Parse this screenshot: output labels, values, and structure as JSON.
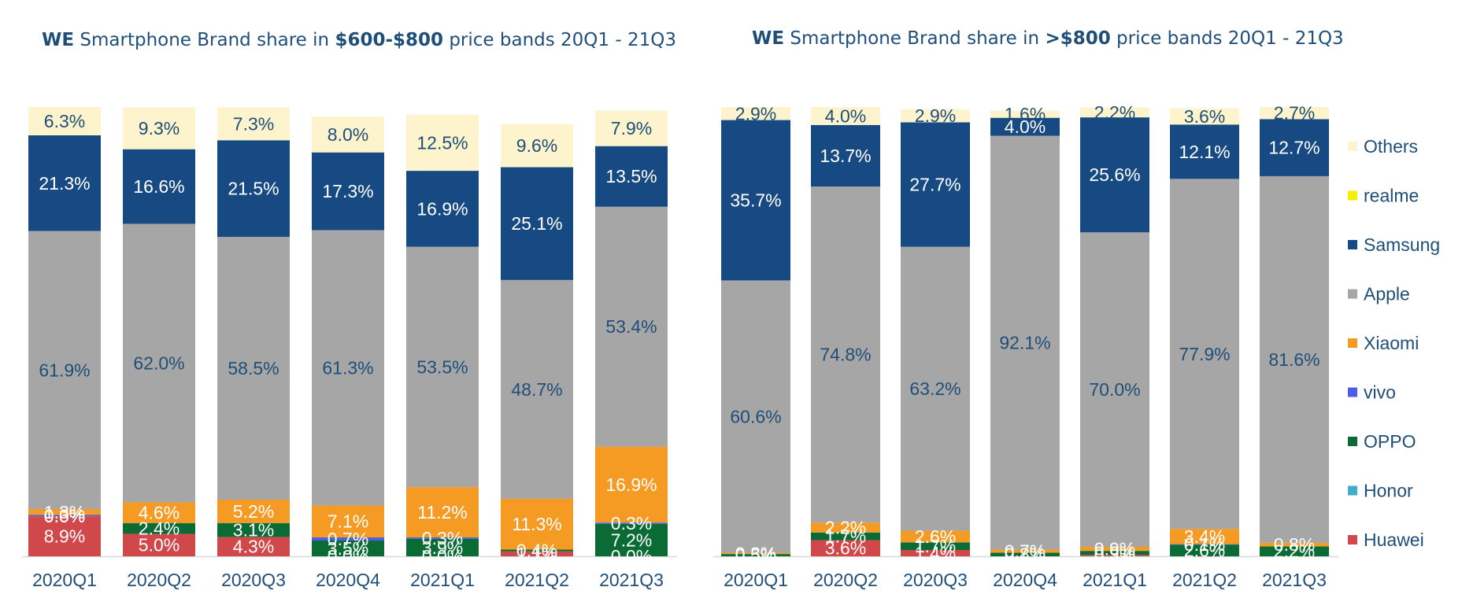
{
  "colors": {
    "Huawei": "#d0484a",
    "Honor": "#3fb0c8",
    "OPPO": "#0a6b34",
    "vivo": "#4a5ee8",
    "Xiaomi": "#f59a23",
    "Apple": "#a6a6a6",
    "Samsung": "#174a82",
    "realme": "#f5f000",
    "Others": "#fdf3cc",
    "text_dark": "#1f4e79",
    "axis": "#d9d9d9"
  },
  "legend": {
    "items": [
      "Others",
      "realme",
      "Samsung",
      "Apple",
      "Xiaomi",
      "vivo",
      "OPPO",
      "Honor",
      "Huawei"
    ]
  },
  "chart_data": [
    {
      "type": "bar",
      "stacked": true,
      "title_parts": [
        {
          "text": "WE",
          "bold": true
        },
        {
          "text": " Smartphone Brand share in ",
          "bold": false
        },
        {
          "text": "$600-$800",
          "bold": true
        },
        {
          "text": " price bands 20Q1 - 21Q3",
          "bold": false
        }
      ],
      "categories": [
        "2020Q1",
        "2020Q2",
        "2020Q3",
        "2020Q4",
        "2021Q1",
        "2021Q2",
        "2021Q3"
      ],
      "ylim": [
        0,
        100
      ],
      "series": [
        {
          "name": "Huawei",
          "values": [
            8.9,
            5.0,
            4.3,
            0.0,
            0.0,
            1.1,
            0.0
          ]
        },
        {
          "name": "Honor",
          "values": [
            0.0,
            0.0,
            0.0,
            0.0,
            0.0,
            0.0,
            0.0
          ]
        },
        {
          "name": "OPPO",
          "values": [
            0.0,
            2.4,
            3.1,
            3.5,
            3.9,
            0.4,
            7.2
          ]
        },
        {
          "name": "vivo",
          "values": [
            0.3,
            0.0,
            0.0,
            0.7,
            0.3,
            0.0,
            0.3
          ]
        },
        {
          "name": "Xiaomi",
          "values": [
            1.3,
            4.6,
            5.2,
            7.1,
            11.2,
            11.3,
            16.9
          ]
        },
        {
          "name": "Apple",
          "values": [
            61.9,
            62.0,
            58.5,
            61.3,
            53.5,
            48.7,
            53.4
          ]
        },
        {
          "name": "Samsung",
          "values": [
            21.3,
            16.6,
            21.5,
            17.3,
            16.9,
            25.1,
            13.5
          ]
        },
        {
          "name": "realme",
          "values": [
            0.0,
            0.0,
            0.0,
            0.0,
            0.0,
            0.0,
            0.0
          ]
        },
        {
          "name": "Others",
          "values": [
            6.3,
            9.3,
            7.3,
            8.0,
            12.5,
            9.6,
            7.9
          ]
        }
      ]
    },
    {
      "type": "bar",
      "stacked": true,
      "title_parts": [
        {
          "text": "WE",
          "bold": true
        },
        {
          "text": " Smartphone Brand share in ",
          "bold": false
        },
        {
          "text": ">$800",
          "bold": true
        },
        {
          "text": " price bands 20Q1 - 21Q3",
          "bold": false
        }
      ],
      "categories": [
        "2020Q1",
        "2020Q2",
        "2020Q3",
        "2020Q4",
        "2021Q1",
        "2021Q2",
        "2021Q3"
      ],
      "ylim": [
        0,
        100
      ],
      "series": [
        {
          "name": "Huawei",
          "values": [
            0.0,
            3.6,
            1.4,
            0.0,
            0.3,
            0.0,
            0.0
          ]
        },
        {
          "name": "Honor",
          "values": [
            0.0,
            0.0,
            0.0,
            0.0,
            0.0,
            0.0,
            0.0
          ]
        },
        {
          "name": "OPPO",
          "values": [
            0.5,
            1.7,
            1.7,
            0.8,
            0.9,
            2.6,
            2.2
          ]
        },
        {
          "name": "vivo",
          "values": [
            0.0,
            0.0,
            0.0,
            0.0,
            0.0,
            0.1,
            0.0
          ]
        },
        {
          "name": "Xiaomi",
          "values": [
            0.3,
            2.2,
            2.6,
            0.7,
            0.9,
            3.4,
            0.8
          ]
        },
        {
          "name": "Apple",
          "values": [
            60.6,
            74.8,
            63.2,
            92.1,
            70.0,
            77.9,
            81.6
          ]
        },
        {
          "name": "Samsung",
          "values": [
            35.7,
            13.7,
            27.7,
            4.0,
            25.6,
            12.1,
            12.7
          ]
        },
        {
          "name": "realme",
          "values": [
            0.0,
            0.0,
            0.0,
            0.0,
            0.0,
            0.0,
            0.0
          ]
        },
        {
          "name": "Others",
          "values": [
            2.9,
            4.0,
            2.9,
            1.6,
            2.2,
            3.6,
            2.7
          ]
        }
      ]
    }
  ]
}
